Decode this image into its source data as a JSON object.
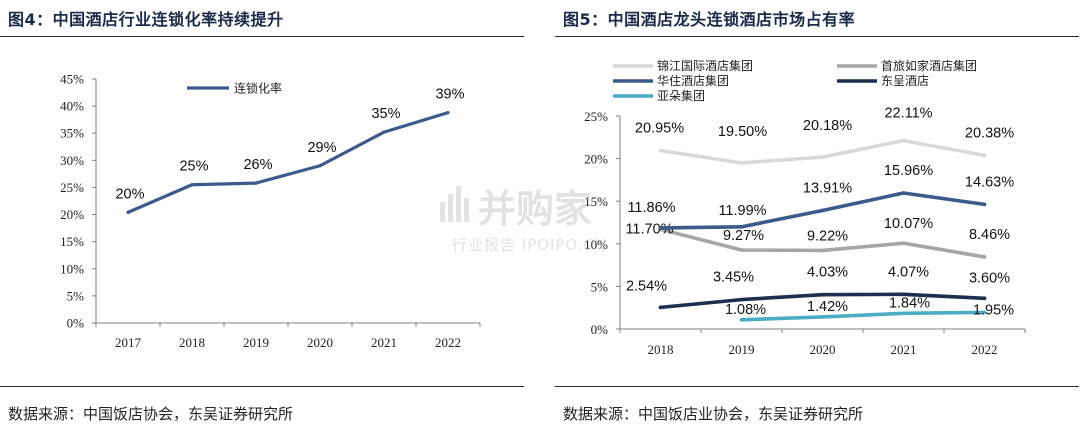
{
  "left_panel": {
    "title": "图4：中国酒店行业连锁化率持续提升",
    "source": "数据来源：中国饭店协会，东吴证券研究所"
  },
  "right_panel": {
    "title": "图5：中国酒店龙头连锁酒店市场占有率",
    "source": "数据来源：中国饭店业协会，东吴证券研究所"
  },
  "watermark": {
    "main": "并购家",
    "sub": "行业报告 IPOIPO.CN"
  },
  "chart_data": [
    {
      "type": "line",
      "title": "",
      "xlabel": "",
      "ylabel": "",
      "categories": [
        "2017",
        "2018",
        "2019",
        "2020",
        "2021",
        "2022"
      ],
      "y_ticks": [
        "0%",
        "5%",
        "10%",
        "15%",
        "20%",
        "25%",
        "30%",
        "35%",
        "40%",
        "45%"
      ],
      "ylim": [
        0,
        45
      ],
      "grid": false,
      "legend_position": "top-left",
      "series": [
        {
          "name": "连锁化率",
          "color": "#3c5a8c",
          "values": [
            20.4,
            25.5,
            25.8,
            29,
            35.2,
            38.8
          ],
          "labels": [
            "20%",
            "25%",
            "26%",
            "29%",
            "35%",
            "39%"
          ]
        }
      ]
    },
    {
      "type": "line",
      "title": "",
      "xlabel": "",
      "ylabel": "",
      "categories": [
        "2018",
        "2019",
        "2020",
        "2021",
        "2022"
      ],
      "y_ticks": [
        "0%",
        "5%",
        "10%",
        "15%",
        "20%",
        "25%"
      ],
      "ylim": [
        0,
        25
      ],
      "grid": false,
      "legend_position": "top",
      "series": [
        {
          "name": "锦江国际酒店集团",
          "color": "#d9d9d9",
          "values": [
            20.95,
            19.5,
            20.18,
            22.11,
            20.38
          ],
          "labels": [
            "20.95%",
            "19.50%",
            "20.18%",
            "22.11%",
            "20.38%"
          ]
        },
        {
          "name": "首旅如家酒店集团",
          "color": "#a6a6a6",
          "values": [
            11.7,
            9.27,
            9.22,
            10.07,
            8.46
          ],
          "labels": [
            "11.70%",
            "9.27%",
            "9.22%",
            "10.07%",
            "8.46%"
          ]
        },
        {
          "name": "华住酒店集团",
          "color": "#3c5a8c",
          "values": [
            11.86,
            11.99,
            13.91,
            15.96,
            14.63
          ],
          "labels": [
            "11.86%",
            "11.99%",
            "13.91%",
            "15.96%",
            "14.63%"
          ]
        },
        {
          "name": "东呈酒店",
          "color": "#1c2f4f",
          "values": [
            2.54,
            3.45,
            4.03,
            4.07,
            3.6
          ],
          "labels": [
            "2.54%",
            "3.45%",
            "4.03%",
            "4.07%",
            "3.60%"
          ]
        },
        {
          "name": "亚朵集团",
          "color": "#4bacc6",
          "values": [
            null,
            1.08,
            1.42,
            1.84,
            1.95
          ],
          "labels": [
            null,
            "1.08%",
            "1.42%",
            "1.84%",
            "1.95%"
          ]
        }
      ]
    }
  ]
}
